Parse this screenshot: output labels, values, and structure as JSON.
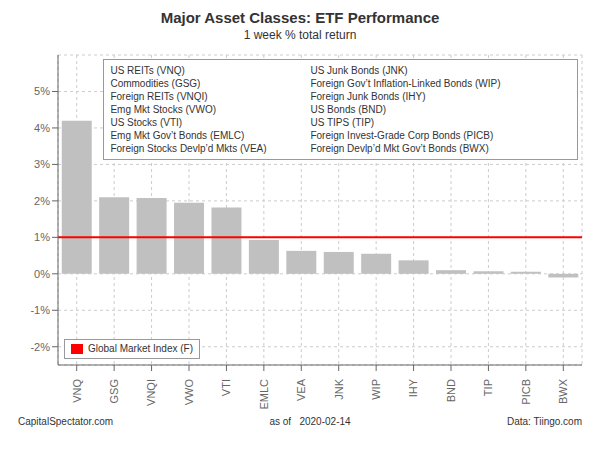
{
  "chart_data": {
    "type": "bar",
    "title": "Major Asset Classes: ETF Performance",
    "subtitle": "1 week % total return",
    "categories": [
      "VNQ",
      "GSG",
      "VNQI",
      "VWO",
      "VTI",
      "EMLC",
      "VEA",
      "JNK",
      "WIP",
      "IHY",
      "BND",
      "TIP",
      "PICB",
      "BWX"
    ],
    "values": [
      4.2,
      2.1,
      2.08,
      1.95,
      1.82,
      0.93,
      0.63,
      0.6,
      0.55,
      0.37,
      0.1,
      0.07,
      0.06,
      -0.1
    ],
    "color": "#c0c0c0",
    "ylim": [
      -2.5,
      6
    ],
    "yticks": [
      {
        "value": -2,
        "label": "-2%"
      },
      {
        "value": -1,
        "label": "-1%"
      },
      {
        "value": 0,
        "label": "0%"
      },
      {
        "value": 1,
        "label": "1%"
      },
      {
        "value": 2,
        "label": "2%"
      },
      {
        "value": 3,
        "label": "3%"
      },
      {
        "value": 4,
        "label": "4%"
      },
      {
        "value": 5,
        "label": "5%"
      }
    ],
    "grid": true,
    "ref_line": {
      "value": 1,
      "label": "Global Market Index (F)",
      "color": "red"
    },
    "legend": "lower left",
    "annotations": [
      "US REITs (VNQ)",
      "Commodities (GSG)",
      "Foreign REITs (VNQI)",
      "Emg Mkt Stocks (VWO)",
      "US Stocks (VTI)",
      "Emg Mkt Gov’t Bonds (EMLC)",
      "Foreign Stocks Devlp’d Mkts (VEA)",
      "US Junk Bonds (JNK)",
      "Foreign Gov’t Inflation-Linked Bonds (WIP)",
      "Foreign Junk Bonds (IHY)",
      "US Bonds (BND)",
      "US TIPS (TIP)",
      "Foreign Invest-Grade Corp Bonds (PICB)",
      "Foreign Devlp’d Mkt Gov’t Bonds (BWX)"
    ],
    "footer": [
      "CapitalSpectator.com",
      "as of   2020-02-14",
      "Data: Tiingo.com"
    ]
  }
}
